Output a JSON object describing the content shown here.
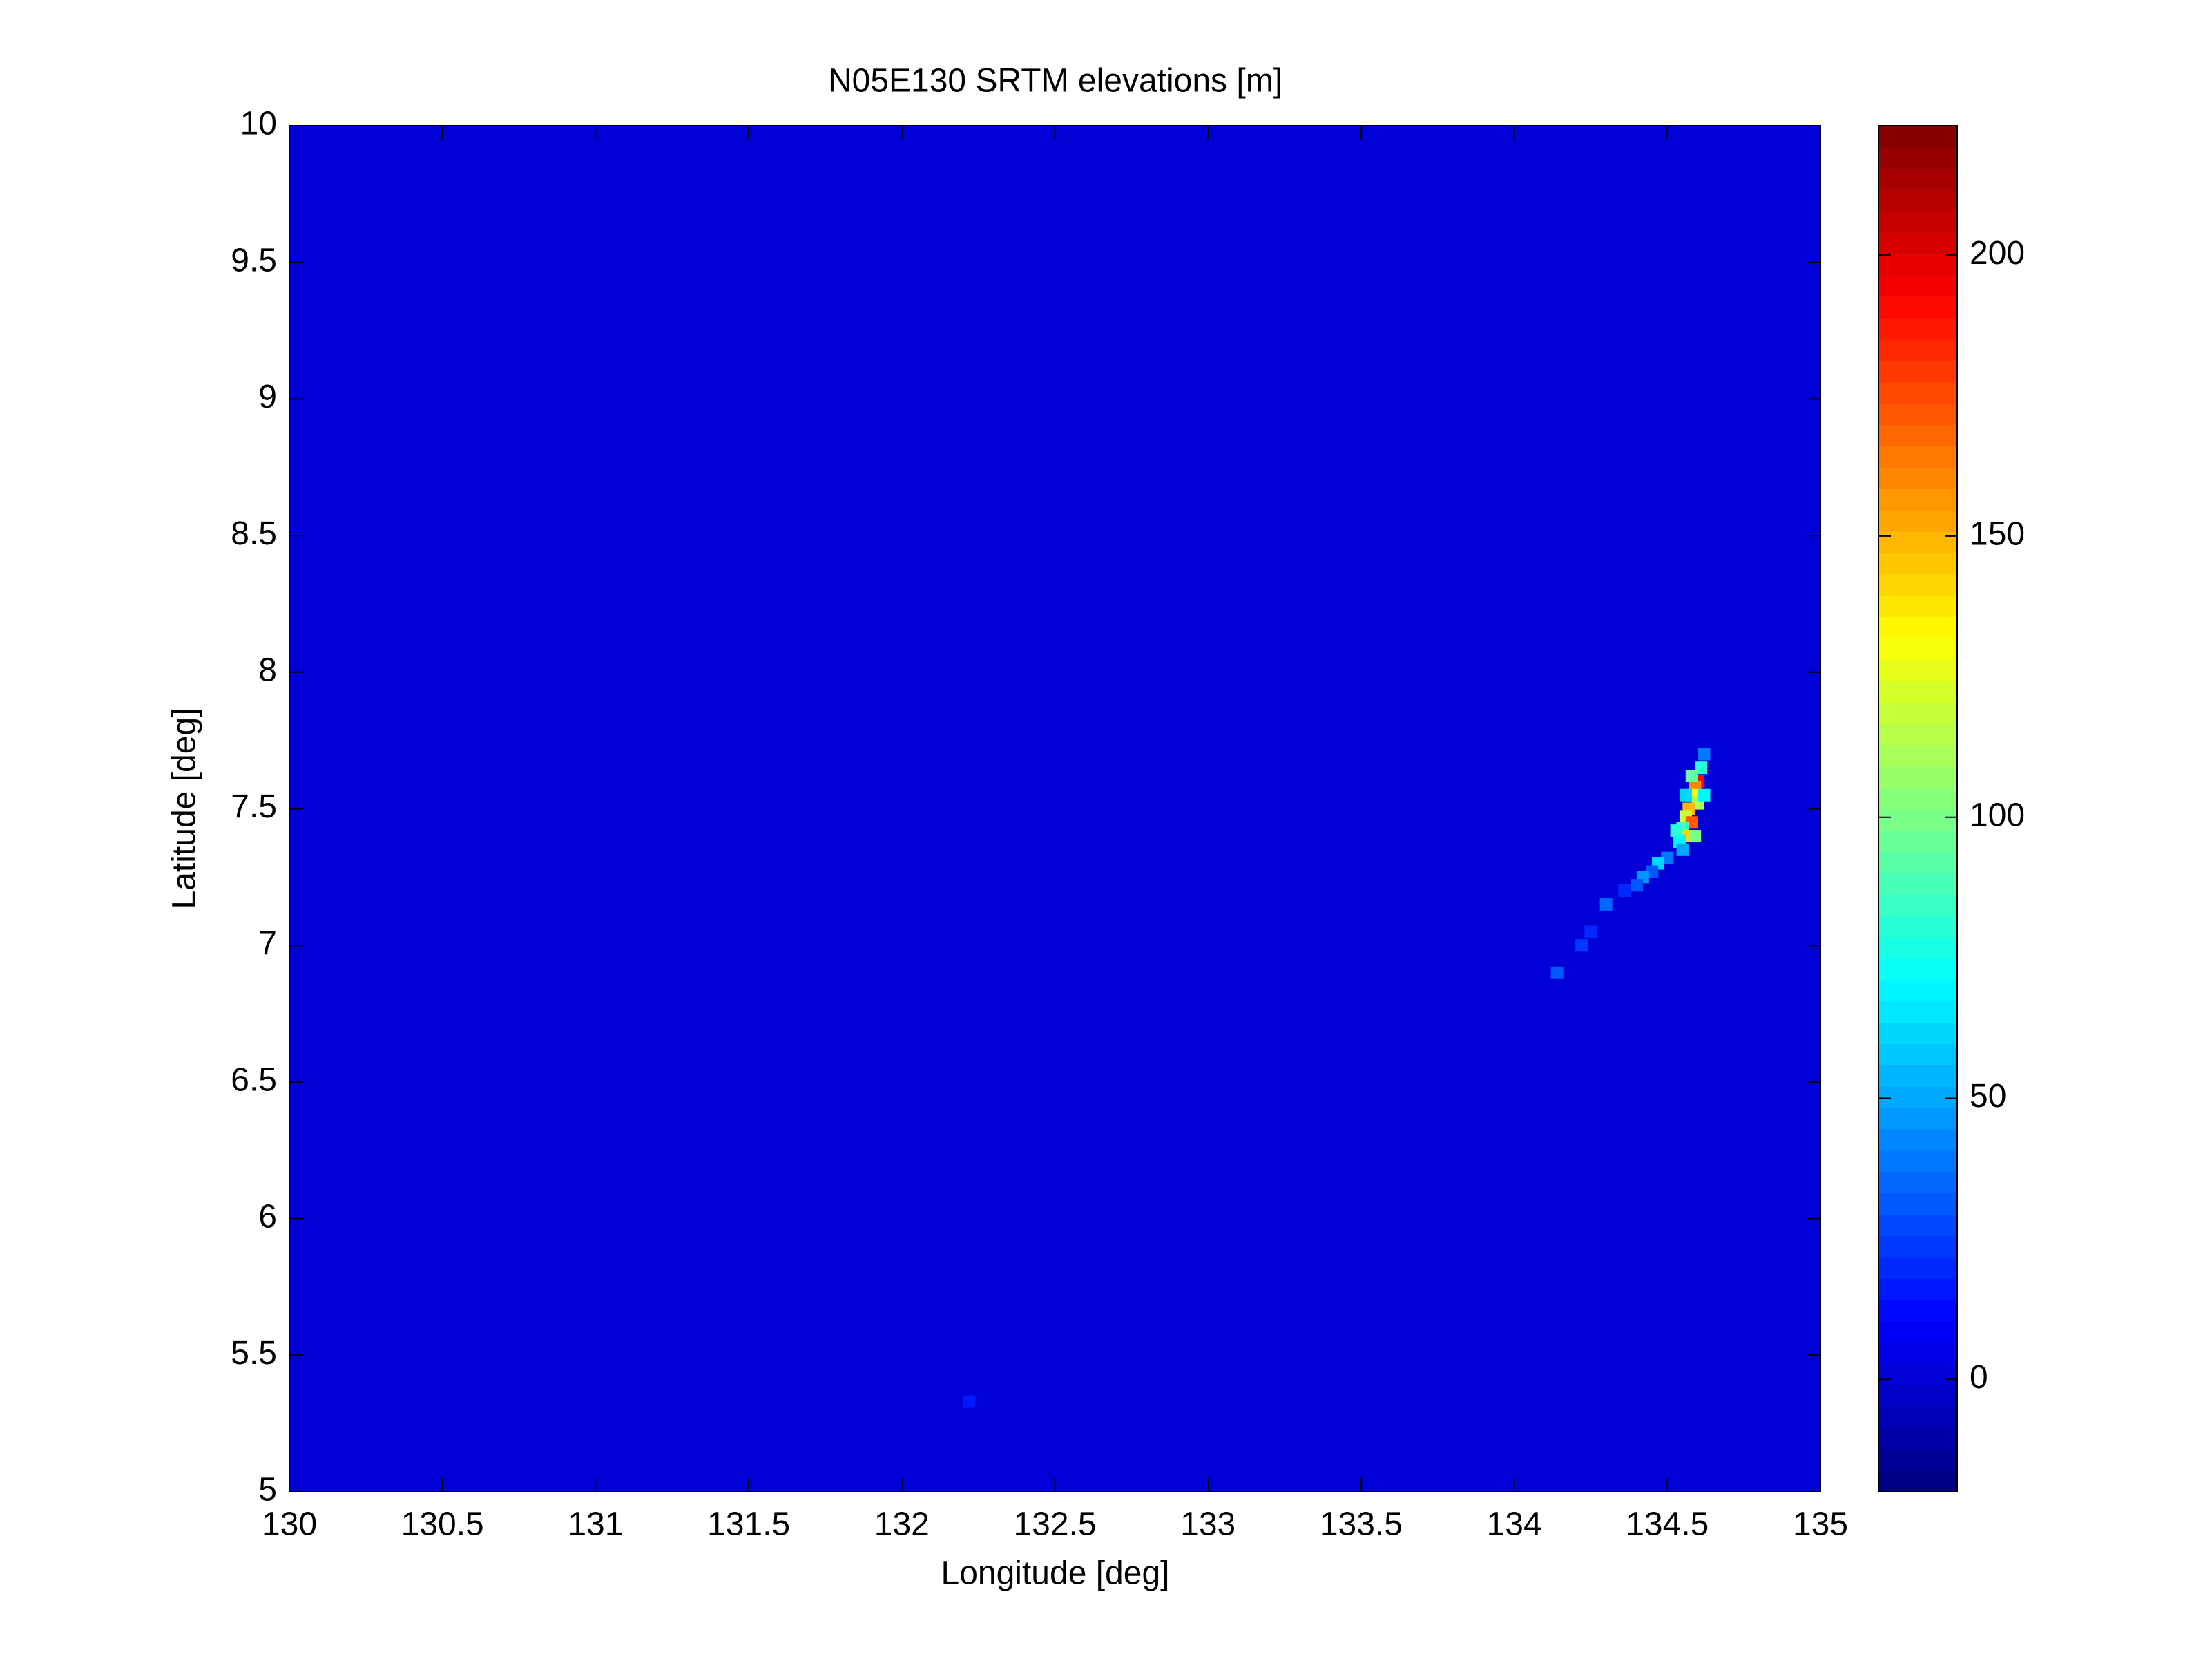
{
  "chart_data": {
    "type": "heatmap",
    "title": "N05E130 SRTM elevations [m]",
    "x_label": "Longitude [deg]",
    "y_label": "Latitude [deg]",
    "xlim": [
      130,
      135
    ],
    "ylim": [
      5,
      10
    ],
    "xticks": [
      130,
      130.5,
      131,
      131.5,
      132,
      132.5,
      133,
      133.5,
      134,
      134.5,
      135
    ],
    "yticks": [
      5,
      5.5,
      6,
      6.5,
      7,
      7.5,
      8,
      8.5,
      9,
      9.5,
      10
    ],
    "colormap": "jet",
    "clim": [
      -20,
      223
    ],
    "cticks": [
      0,
      50,
      100,
      150,
      200
    ],
    "background_value": 0,
    "x": [
      134.62,
      134.61,
      134.6,
      134.59,
      134.58,
      134.6,
      134.57,
      134.56,
      134.58,
      134.55,
      134.57,
      134.54,
      134.59,
      134.56,
      134.55,
      134.53,
      134.5,
      134.47,
      134.45,
      134.42,
      134.4,
      134.36,
      134.3,
      134.25,
      134.22,
      134.14,
      132.22,
      134.62,
      134.58
    ],
    "y": [
      7.7,
      7.65,
      7.6,
      7.58,
      7.55,
      7.52,
      7.5,
      7.47,
      7.45,
      7.43,
      7.4,
      7.38,
      7.4,
      7.55,
      7.35,
      7.42,
      7.32,
      7.3,
      7.27,
      7.25,
      7.22,
      7.2,
      7.15,
      7.05,
      7.0,
      6.9,
      5.33,
      7.55,
      7.62
    ],
    "values": [
      40,
      80,
      190,
      160,
      130,
      110,
      150,
      120,
      170,
      90,
      140,
      70,
      100,
      60,
      50,
      80,
      40,
      60,
      30,
      45,
      30,
      20,
      35,
      20,
      25,
      30,
      15,
      70,
      95
    ]
  }
}
